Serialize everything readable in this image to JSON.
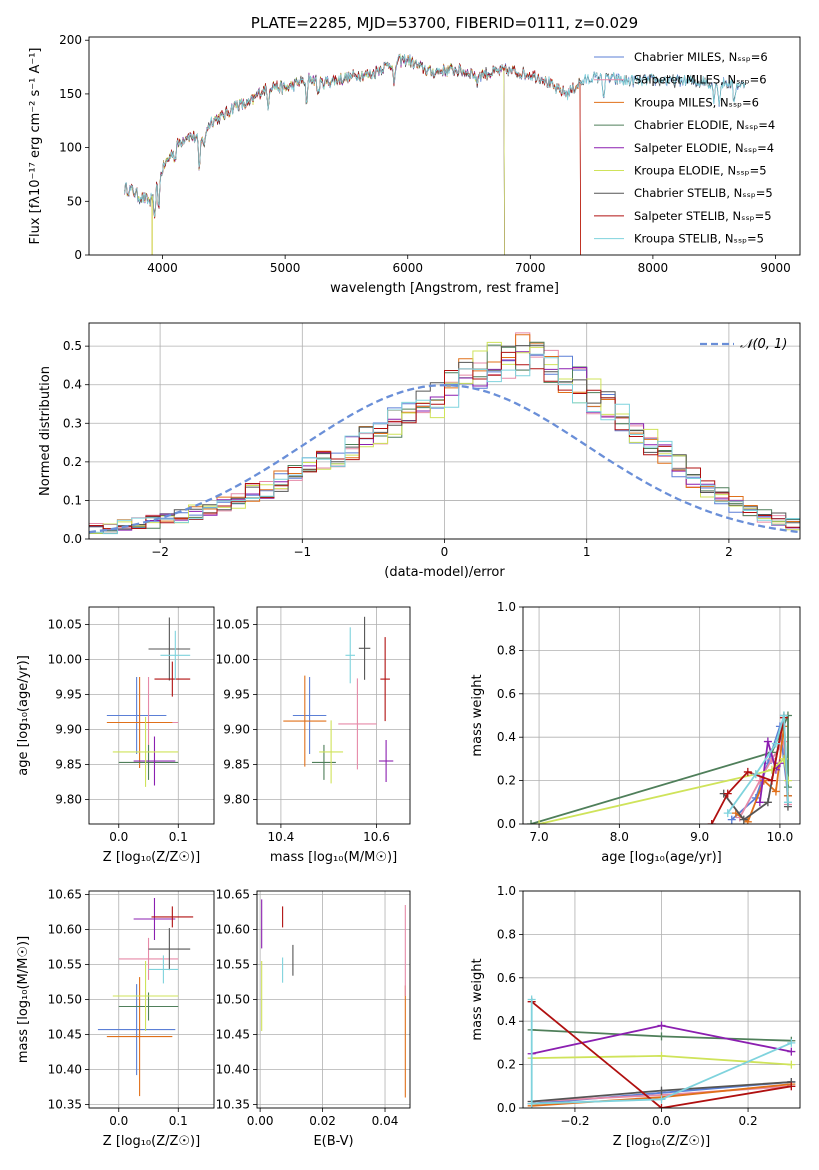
{
  "figure": {
    "title": "PLATE=2285, MJD=53700, FIBERID=0111, z=0.029"
  },
  "colors": {
    "Chabrier MILES": "#5b7fd6",
    "Salpeter MILES": "#e68aa8",
    "Kroupa MILES": "#e0701a",
    "Chabrier ELODIE": "#4f7f5a",
    "Salpeter ELODIE": "#8b1fb0",
    "Kroupa ELODIE": "#cfe35a",
    "Chabrier STELIB": "#555555",
    "Salpeter STELIB": "#b01010",
    "Kroupa STELIB": "#7fd3dd",
    "gaussian": "#6a8fd8",
    "grid": "#b0b0b0"
  },
  "chart_data": [
    {
      "id": "spectrum",
      "type": "line",
      "title": "PLATE=2285, MJD=53700, FIBERID=0111, z=0.029",
      "xlabel": "wavelength [Angstrom, rest frame]",
      "ylabel": "Flux [fλ10⁻¹⁷ erg cm⁻² s⁻¹ A⁻¹]",
      "xlim": [
        3400,
        9200
      ],
      "ylim": [
        0,
        203
      ],
      "xticks": [
        4000,
        5000,
        6000,
        7000,
        8000,
        9000
      ],
      "yticks": [
        0,
        50,
        100,
        150,
        200
      ],
      "grid": false,
      "legend_position": "right",
      "series": [
        {
          "name": "Chabrier MILES, Nₛₛₚ=6",
          "key": "Chabrier MILES"
        },
        {
          "name": "Salpeter MILES, Nₛₛₚ=6",
          "key": "Salpeter MILES"
        },
        {
          "name": "Kroupa MILES, Nₛₛₚ=6",
          "key": "Kroupa MILES"
        },
        {
          "name": "Chabrier ELODIE, Nₛₛₚ=4",
          "key": "Chabrier ELODIE"
        },
        {
          "name": "Salpeter ELODIE, Nₛₛₚ=4",
          "key": "Salpeter ELODIE"
        },
        {
          "name": "Kroupa ELODIE, Nₛₛₚ=5",
          "key": "Kroupa ELODIE"
        },
        {
          "name": "Chabrier STELIB, Nₛₛₚ=5",
          "key": "Chabrier STELIB"
        },
        {
          "name": "Salpeter STELIB, Nₛₛₚ=5",
          "key": "Salpeter STELIB"
        },
        {
          "name": "Kroupa STELIB, Nₛₛₚ=5",
          "key": "Kroupa STELIB"
        }
      ],
      "continuum": {
        "x": [
          3690,
          3760,
          3800,
          3900,
          4000,
          4100,
          4200,
          4300,
          4400,
          4500,
          4600,
          4700,
          4800,
          4900,
          5000,
          5100,
          5200,
          5300,
          5400,
          5500,
          5600,
          5700,
          5800,
          5900,
          6000,
          6100,
          6200,
          6300,
          6400,
          6500,
          6600,
          6700,
          6800,
          6900,
          7000,
          7100,
          7200,
          7300,
          7400,
          7500,
          7600,
          7800,
          8000,
          8200,
          8400,
          8600,
          8750
        ],
        "y": [
          62,
          60,
          55,
          50,
          80,
          100,
          112,
          108,
          125,
          130,
          140,
          140,
          152,
          158,
          155,
          160,
          165,
          160,
          163,
          165,
          168,
          168,
          175,
          180,
          182,
          175,
          170,
          172,
          172,
          170,
          168,
          170,
          172,
          170,
          168,
          165,
          155,
          150,
          160,
          165,
          165,
          162,
          163,
          162,
          161,
          160,
          158
        ]
      },
      "absorption_lines": [
        {
          "x": 3934,
          "depth": 30
        },
        {
          "x": 3969,
          "depth": 25
        },
        {
          "x": 4102,
          "depth": 12
        },
        {
          "x": 4300,
          "depth": 30
        },
        {
          "x": 4340,
          "depth": 15
        },
        {
          "x": 4861,
          "depth": 15
        },
        {
          "x": 5175,
          "depth": 25
        },
        {
          "x": 5270,
          "depth": 12
        },
        {
          "x": 5890,
          "depth": 25
        },
        {
          "x": 6563,
          "depth": 10
        },
        {
          "x": 7600,
          "depth": 18
        },
        {
          "x": 8498,
          "depth": 15
        },
        {
          "x": 8542,
          "depth": 20
        },
        {
          "x": 8662,
          "depth": 18
        }
      ],
      "range_end": {
        "Chabrier MILES": 8750,
        "Salpeter MILES": 7410,
        "Kroupa MILES": 7410,
        "Chabrier ELODIE": 6790,
        "Salpeter ELODIE": 6790,
        "Kroupa ELODIE": 6790,
        "Chabrier STELIB": 8750,
        "Salpeter STELIB": 7410,
        "Kroupa STELIB": 8750
      }
    },
    {
      "id": "residuals",
      "type": "line",
      "title": "",
      "xlabel": "(data-model)/error",
      "ylabel": "Normed distribution",
      "xlim": [
        -2.5,
        2.5
      ],
      "ylim": [
        0,
        0.56
      ],
      "xticks": [
        -2,
        -1,
        0,
        1,
        2
      ],
      "yticks": [
        0.0,
        0.1,
        0.2,
        0.3,
        0.4,
        0.5
      ],
      "grid": true,
      "legend_position": "top-right",
      "gaussian_label": "𝒩(0, 1)",
      "bin_width": 0.1,
      "bin_start": -2.5,
      "hist_base": [
        0.025,
        0.03,
        0.035,
        0.04,
        0.045,
        0.05,
        0.06,
        0.07,
        0.08,
        0.09,
        0.1,
        0.12,
        0.13,
        0.15,
        0.17,
        0.19,
        0.2,
        0.22,
        0.24,
        0.26,
        0.28,
        0.3,
        0.32,
        0.34,
        0.36,
        0.39,
        0.42,
        0.44,
        0.46,
        0.47,
        0.48,
        0.47,
        0.45,
        0.43,
        0.4,
        0.37,
        0.34,
        0.31,
        0.28,
        0.25,
        0.22,
        0.19,
        0.16,
        0.13,
        0.11,
        0.09,
        0.07,
        0.06,
        0.05,
        0.04
      ]
    },
    {
      "id": "age-vs-Z",
      "type": "scatter",
      "title": "",
      "xlabel": "Z [log₁₀(Z/Z☉)]",
      "ylabel": "age  [log₁₀(age/yr)]",
      "xlim": [
        -0.05,
        0.16
      ],
      "ylim": [
        9.765,
        10.075
      ],
      "xticks": [
        0.0,
        0.1
      ],
      "yticks": [
        9.8,
        9.85,
        9.9,
        9.95,
        10.0,
        10.05
      ],
      "grid": true,
      "points": [
        {
          "key": "Chabrier MILES",
          "x": 0.03,
          "xerr": 0.05,
          "y": 9.92,
          "yerr": 0.055
        },
        {
          "key": "Salpeter MILES",
          "x": 0.05,
          "xerr": 0.05,
          "y": 9.91,
          "yerr": 0.065
        },
        {
          "key": "Kroupa MILES",
          "x": 0.035,
          "xerr": 0.055,
          "y": 9.91,
          "yerr": 0.065
        },
        {
          "key": "Chabrier ELODIE",
          "x": 0.05,
          "xerr": 0.05,
          "y": 9.853,
          "yerr": 0.025
        },
        {
          "key": "Salpeter ELODIE",
          "x": 0.06,
          "xerr": 0.035,
          "y": 9.855,
          "yerr": 0.035
        },
        {
          "key": "Kroupa ELODIE",
          "x": 0.045,
          "xerr": 0.055,
          "y": 9.868,
          "yerr": 0.05
        },
        {
          "key": "Chabrier STELIB",
          "x": 0.085,
          "xerr": 0.035,
          "y": 10.015,
          "yerr": 0.045
        },
        {
          "key": "Salpeter STELIB",
          "x": 0.09,
          "xerr": 0.03,
          "y": 9.972,
          "yerr": 0.025
        },
        {
          "key": "Kroupa STELIB",
          "x": 0.095,
          "xerr": 0.025,
          "y": 10.006,
          "yerr": 0.035
        }
      ]
    },
    {
      "id": "age-vs-mass",
      "type": "scatter",
      "title": "",
      "xlabel": "mass [log₁₀(M/M☉)]",
      "ylabel": "",
      "xlim": [
        10.35,
        10.67
      ],
      "ylim": [
        9.765,
        10.075
      ],
      "xticks": [
        10.4,
        10.6
      ],
      "xticklabels": [
        "10.4",
        "10.6"
      ],
      "yticks": [
        9.8,
        9.85,
        9.9,
        9.95,
        10.0,
        10.05
      ],
      "grid": true,
      "points": [
        {
          "key": "Chabrier MILES",
          "x": 10.46,
          "xerr": 0.035,
          "y": 9.92,
          "yerr": 0.055
        },
        {
          "key": "Salpeter MILES",
          "x": 10.56,
          "xerr": 0.04,
          "y": 9.908,
          "yerr": 0.065
        },
        {
          "key": "Kroupa MILES",
          "x": 10.45,
          "xerr": 0.045,
          "y": 9.912,
          "yerr": 0.065
        },
        {
          "key": "Chabrier ELODIE",
          "x": 10.49,
          "xerr": 0.025,
          "y": 9.853,
          "yerr": 0.025
        },
        {
          "key": "Salpeter ELODIE",
          "x": 10.62,
          "xerr": 0.015,
          "y": 9.855,
          "yerr": 0.03
        },
        {
          "key": "Kroupa ELODIE",
          "x": 10.505,
          "xerr": 0.025,
          "y": 9.868,
          "yerr": 0.045
        },
        {
          "key": "Chabrier STELIB",
          "x": 10.575,
          "xerr": 0.012,
          "y": 10.016,
          "yerr": 0.045
        },
        {
          "key": "Salpeter STELIB",
          "x": 10.618,
          "xerr": 0.01,
          "y": 9.972,
          "yerr": 0.06
        },
        {
          "key": "Kroupa STELIB",
          "x": 10.545,
          "xerr": 0.01,
          "y": 10.006,
          "yerr": 0.04
        }
      ]
    },
    {
      "id": "weight-vs-age",
      "type": "line",
      "title": "",
      "xlabel": "age  [log₁₀(age/yr)]",
      "ylabel": "mass weight",
      "xlim": [
        6.8,
        10.25
      ],
      "ylim": [
        0,
        1.0
      ],
      "xticks": [
        7,
        8,
        9,
        10
      ],
      "yticks": [
        0.0,
        0.2,
        0.4,
        0.6,
        0.8,
        1.0
      ],
      "grid": true,
      "series": [
        {
          "key": "Chabrier MILES",
          "x": [
            9.4,
            9.7,
            9.85,
            10.0,
            10.1
          ],
          "y": [
            0.02,
            0.12,
            0.28,
            0.45,
            0.13
          ]
        },
        {
          "key": "Salpeter MILES",
          "x": [
            9.5,
            9.75,
            9.9,
            10.05,
            10.1
          ],
          "y": [
            0.03,
            0.2,
            0.3,
            0.38,
            0.09
          ]
        },
        {
          "key": "Kroupa MILES",
          "x": [
            9.45,
            9.6,
            9.8,
            9.95,
            10.05,
            10.1
          ],
          "y": [
            0.05,
            0.01,
            0.2,
            0.15,
            0.45,
            0.13
          ]
        },
        {
          "key": "Chabrier ELODIE",
          "x": [
            6.9,
            9.9,
            10.1,
            10.1
          ],
          "y": [
            0.0,
            0.33,
            0.5,
            0.17
          ]
        },
        {
          "key": "Salpeter ELODIE",
          "x": [
            9.75,
            9.85,
            9.95,
            10.0
          ],
          "y": [
            0.1,
            0.38,
            0.25,
            0.28
          ]
        },
        {
          "key": "Kroupa ELODIE",
          "x": [
            7.0,
            9.7,
            9.9,
            10.05,
            10.1
          ],
          "y": [
            0.0,
            0.23,
            0.25,
            0.3,
            0.2
          ]
        },
        {
          "key": "Chabrier STELIB",
          "x": [
            9.3,
            9.55,
            9.85,
            10.05,
            10.1
          ],
          "y": [
            0.14,
            0.02,
            0.1,
            0.5,
            0.08
          ]
        },
        {
          "key": "Salpeter STELIB",
          "x": [
            9.15,
            9.35,
            9.6,
            9.9,
            10.05
          ],
          "y": [
            0.0,
            0.14,
            0.24,
            0.2,
            0.49
          ]
        },
        {
          "key": "Kroupa STELIB",
          "x": [
            9.35,
            9.7,
            9.95,
            10.05,
            10.1
          ],
          "y": [
            0.05,
            0.23,
            0.37,
            0.5,
            0.1
          ]
        }
      ]
    },
    {
      "id": "mass-vs-Z",
      "type": "scatter",
      "title": "",
      "xlabel": "Z [log₁₀(Z/Z☉)]",
      "ylabel": "mass [log₁₀(M/M☉)]",
      "xlim": [
        -0.05,
        0.16
      ],
      "ylim": [
        10.345,
        10.655
      ],
      "xticks": [
        0.0,
        0.1
      ],
      "yticks": [
        10.35,
        10.4,
        10.45,
        10.5,
        10.55,
        10.6,
        10.65
      ],
      "grid": true,
      "points": [
        {
          "key": "Chabrier MILES",
          "x": 0.03,
          "xerr": 0.065,
          "y": 10.457,
          "yerr": 0.065
        },
        {
          "key": "Salpeter MILES",
          "x": 0.05,
          "xerr": 0.05,
          "y": 10.558,
          "yerr": 0.03
        },
        {
          "key": "Kroupa MILES",
          "x": 0.035,
          "xerr": 0.055,
          "y": 10.447,
          "yerr": 0.085
        },
        {
          "key": "Chabrier ELODIE",
          "x": 0.05,
          "xerr": 0.05,
          "y": 10.49,
          "yerr": 0.02
        },
        {
          "key": "Salpeter ELODIE",
          "x": 0.06,
          "xerr": 0.035,
          "y": 10.615,
          "yerr": 0.03
        },
        {
          "key": "Kroupa ELODIE",
          "x": 0.045,
          "xerr": 0.055,
          "y": 10.505,
          "yerr": 0.05
        },
        {
          "key": "Chabrier STELIB",
          "x": 0.085,
          "xerr": 0.035,
          "y": 10.572,
          "yerr": 0.03
        },
        {
          "key": "Salpeter STELIB",
          "x": 0.09,
          "xerr": 0.035,
          "y": 10.618,
          "yerr": 0.015
        },
        {
          "key": "Kroupa STELIB",
          "x": 0.075,
          "xerr": 0.025,
          "y": 10.543,
          "yerr": 0.02
        }
      ]
    },
    {
      "id": "mass-vs-ebv",
      "type": "scatter",
      "title": "",
      "xlabel": "E(B-V)",
      "ylabel": "",
      "xlim": [
        -0.001,
        0.048
      ],
      "ylim": [
        10.345,
        10.655
      ],
      "xticks": [
        0.0,
        0.02,
        0.04
      ],
      "xticklabels": [
        "0.00",
        "0.02",
        "0.04"
      ],
      "yticks": [
        10.35,
        10.4,
        10.45,
        10.5,
        10.55,
        10.6,
        10.65
      ],
      "grid": true,
      "points": [
        {
          "key": "Kroupa MILES",
          "x": 0.0465,
          "xerr": 0,
          "y": 10.44,
          "yerr": 0.08
        },
        {
          "key": "Salpeter MILES",
          "x": 0.0465,
          "xerr": 0,
          "y": 10.57,
          "yerr": 0.065
        },
        {
          "key": "Salpeter ELODIE",
          "x": 0.0005,
          "xerr": 0,
          "y": 10.608,
          "yerr": 0.035
        },
        {
          "key": "Kroupa ELODIE",
          "x": 0.0005,
          "xerr": 0,
          "y": 10.505,
          "yerr": 0.05
        },
        {
          "key": "Chabrier STELIB",
          "x": 0.0105,
          "xerr": 0,
          "y": 10.556,
          "yerr": 0.022
        },
        {
          "key": "Salpeter STELIB",
          "x": 0.0072,
          "xerr": 0,
          "y": 10.618,
          "yerr": 0.015
        },
        {
          "key": "Kroupa STELIB",
          "x": 0.0072,
          "xerr": 0,
          "y": 10.542,
          "yerr": 0.018
        }
      ]
    },
    {
      "id": "weight-vs-Z",
      "type": "line",
      "title": "",
      "xlabel": "Z [log₁₀(Z/Z☉)]",
      "ylabel": "mass weight",
      "xlim": [
        -0.32,
        0.32
      ],
      "ylim": [
        0,
        1.0
      ],
      "xticks": [
        -0.2,
        0.0,
        0.2
      ],
      "xticklabels": [
        "−0.2",
        "0.0",
        "0.2"
      ],
      "yticks": [
        0.0,
        0.2,
        0.4,
        0.6,
        0.8,
        1.0
      ],
      "grid": true,
      "series": [
        {
          "key": "Chabrier MILES",
          "x": [
            -0.3,
            0.0,
            0.3
          ],
          "y": [
            0.02,
            0.07,
            0.12
          ]
        },
        {
          "key": "Salpeter MILES",
          "x": [
            -0.3,
            0.0,
            0.3
          ],
          "y": [
            0.03,
            0.06,
            0.1
          ]
        },
        {
          "key": "Kroupa MILES",
          "x": [
            -0.3,
            0.0,
            0.3
          ],
          "y": [
            0.01,
            0.05,
            0.11
          ]
        },
        {
          "key": "Chabrier ELODIE",
          "x": [
            -0.3,
            0.0,
            0.3
          ],
          "y": [
            0.36,
            0.33,
            0.31
          ]
        },
        {
          "key": "Salpeter ELODIE",
          "x": [
            -0.3,
            0.0,
            0.3
          ],
          "y": [
            0.25,
            0.38,
            0.26
          ]
        },
        {
          "key": "Kroupa ELODIE",
          "x": [
            -0.3,
            0.0,
            0.3
          ],
          "y": [
            0.23,
            0.24,
            0.2
          ]
        },
        {
          "key": "Chabrier STELIB",
          "x": [
            -0.3,
            0.0,
            0.3
          ],
          "y": [
            0.03,
            0.08,
            0.12
          ]
        },
        {
          "key": "Salpeter STELIB",
          "x": [
            -0.3,
            0.0,
            0.3
          ],
          "y": [
            0.49,
            0.0,
            0.1
          ]
        },
        {
          "key": "Kroupa STELIB",
          "x": [
            -0.3,
            -0.3,
            0.0,
            0.3
          ],
          "y": [
            0.5,
            0.02,
            0.04,
            0.3
          ]
        }
      ]
    }
  ]
}
